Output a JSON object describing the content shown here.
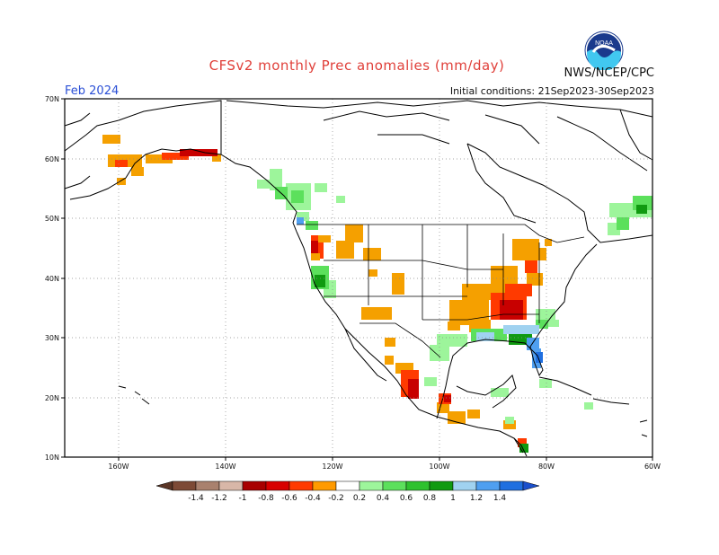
{
  "header": {
    "title": "CFSv2 monthly Prec anomalies (mm/day)",
    "agency": "NWS/NCEP/CPC",
    "logo_text": "NOAA",
    "month": "Feb 2024",
    "initial_conditions": "Initial conditions: 21Sep2023-30Sep2023"
  },
  "map": {
    "lat_labels": [
      "70N",
      "60N",
      "50N",
      "40N",
      "30N",
      "20N",
      "10N"
    ],
    "lon_labels": [
      "160W",
      "140W",
      "120W",
      "100W",
      "80W",
      "60W"
    ]
  },
  "legend": {
    "tick_labels": [
      "-1.4",
      "-1.2",
      "-1",
      "-0.8",
      "-0.6",
      "-0.4",
      "-0.2",
      "0.2",
      "0.4",
      "0.6",
      "0.8",
      "1",
      "1.2",
      "1.4"
    ],
    "colors": [
      "#7d4a36",
      "#a9816e",
      "#d8b7a8",
      "#a80000",
      "#d80000",
      "#ff3a00",
      "#ff9a00",
      "#ffffff",
      "#9df59b",
      "#5ce05c",
      "#2ec12e",
      "#109a10",
      "#a0d2f0",
      "#4f9ff0",
      "#1f6fe0"
    ]
  },
  "colors": {
    "title": "#e0403a",
    "month": "#2a4fd6",
    "dry_orange": "#f5a000",
    "dry_red": "#ff3a00",
    "dry_darkred": "#c80000",
    "wet_lightgreen": "#9df59b",
    "wet_green": "#2ec12e",
    "wet_darkgreen": "#109a10",
    "wet_lightblue": "#a0d2f0",
    "wet_blue": "#4f9ff0"
  }
}
